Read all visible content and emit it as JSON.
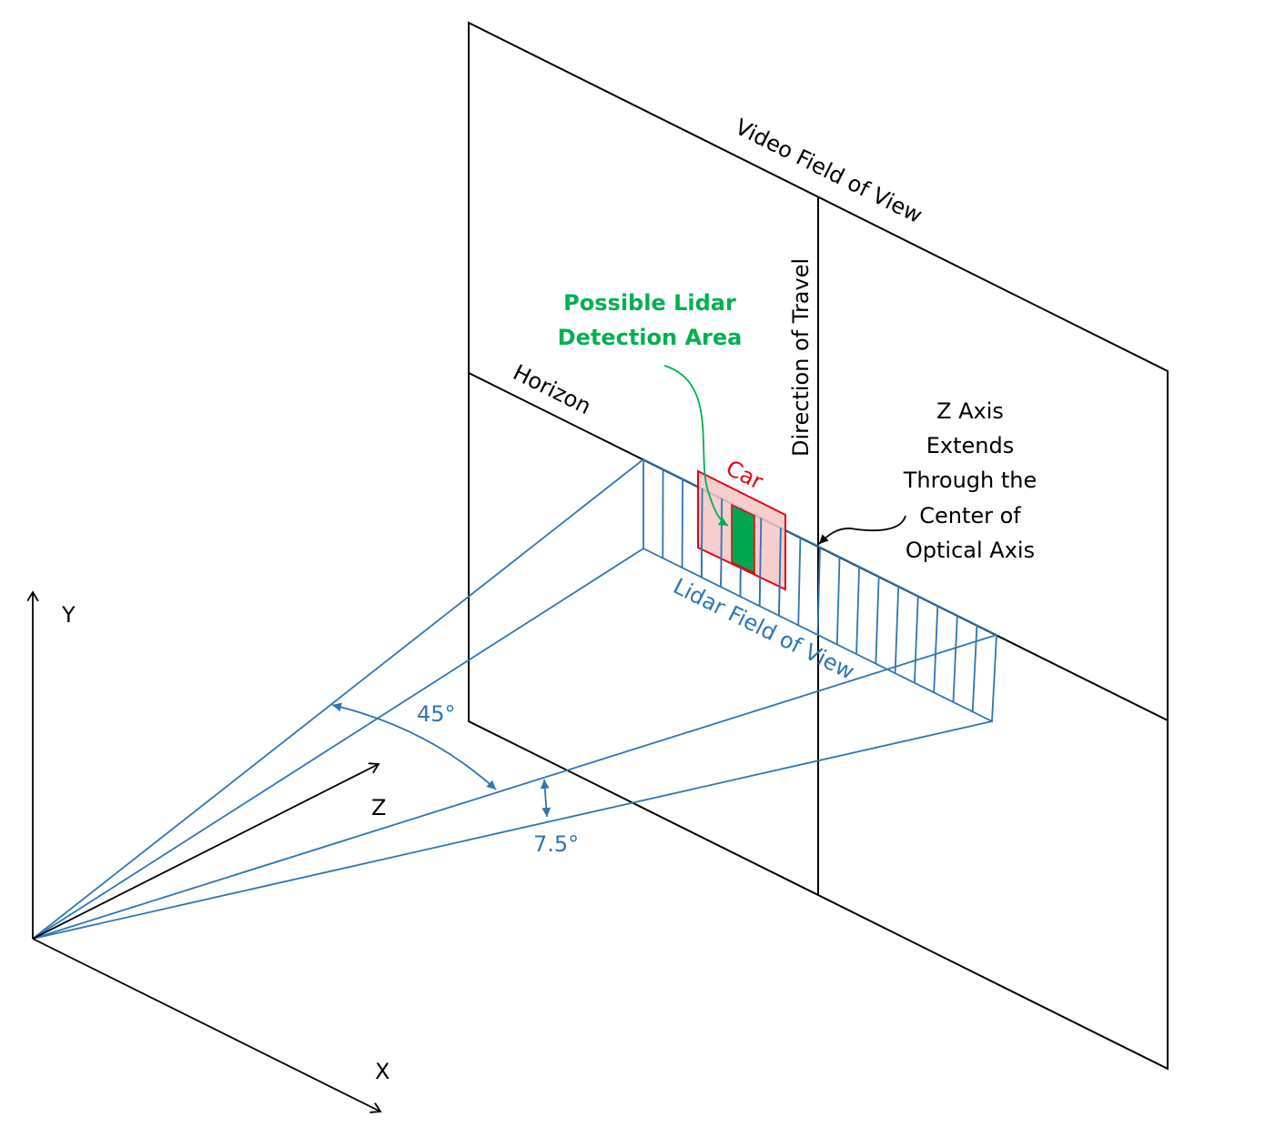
{
  "labels": {
    "video_fov": "Video Field of View",
    "direction_of_travel": "Direction of Travel",
    "horizon": "Horizon",
    "possible_lidar_line1": "Possible Lidar",
    "possible_lidar_line2": "Detection Area",
    "car": "Car",
    "zaxis_line1": "Z Axis",
    "zaxis_line2": "Extends",
    "zaxis_line3": "Through the",
    "zaxis_line4": "Center of",
    "zaxis_line5": "Optical Axis",
    "lidar_fov": "Lidar Field of View",
    "angle_horizontal": "45°",
    "angle_vertical": "7.5°",
    "axis_y": "Y",
    "axis_z": "Z",
    "axis_x": "X"
  },
  "colors": {
    "black": "#000000",
    "blue": "#2e75b6",
    "red": "#e30613",
    "car_fill": "#f6c6c6",
    "green": "#00b050",
    "green_fill": "#00a650"
  }
}
